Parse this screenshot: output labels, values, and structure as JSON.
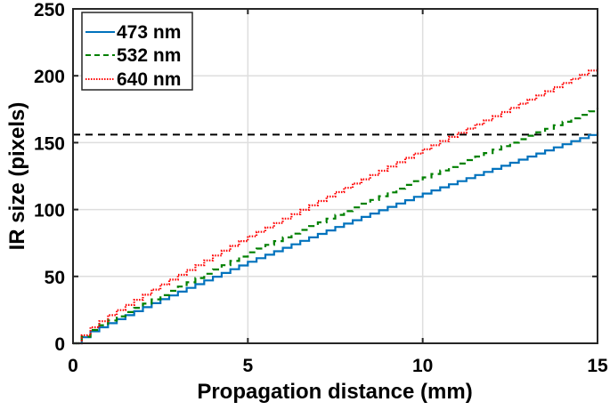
{
  "chart_data": {
    "type": "line",
    "title": "",
    "xlabel": "Propagation distance (mm)",
    "ylabel": "IR size (pixels)",
    "xlim": [
      0,
      15
    ],
    "ylim": [
      0,
      250
    ],
    "xticks": [
      0,
      5,
      10,
      15
    ],
    "yticks": [
      0,
      50,
      100,
      150,
      200,
      250
    ],
    "grid": true,
    "legend_position": "upper left",
    "x": [
      0,
      0.5,
      1,
      2.5,
      5,
      7.5,
      10,
      12.5,
      15
    ],
    "series": [
      {
        "name": "473 nm",
        "color": "#0072BD",
        "style": "solid",
        "step": true,
        "values": [
          0,
          9,
          15,
          33,
          61,
          87,
          112,
          135,
          158
        ]
      },
      {
        "name": "532 nm",
        "color": "#008000",
        "style": "dashed",
        "step": true,
        "values": [
          0,
          10,
          17,
          36,
          68,
          96,
          124,
          150,
          176
        ]
      },
      {
        "name": "640 nm",
        "color": "#FF0000",
        "style": "dotted",
        "step": true,
        "values": [
          0,
          12,
          21,
          44,
          80,
          113,
          145,
          176,
          207
        ]
      }
    ],
    "reference_lines": [
      {
        "type": "horizontal",
        "y": 156,
        "color": "#000000",
        "style": "dashed"
      }
    ]
  }
}
